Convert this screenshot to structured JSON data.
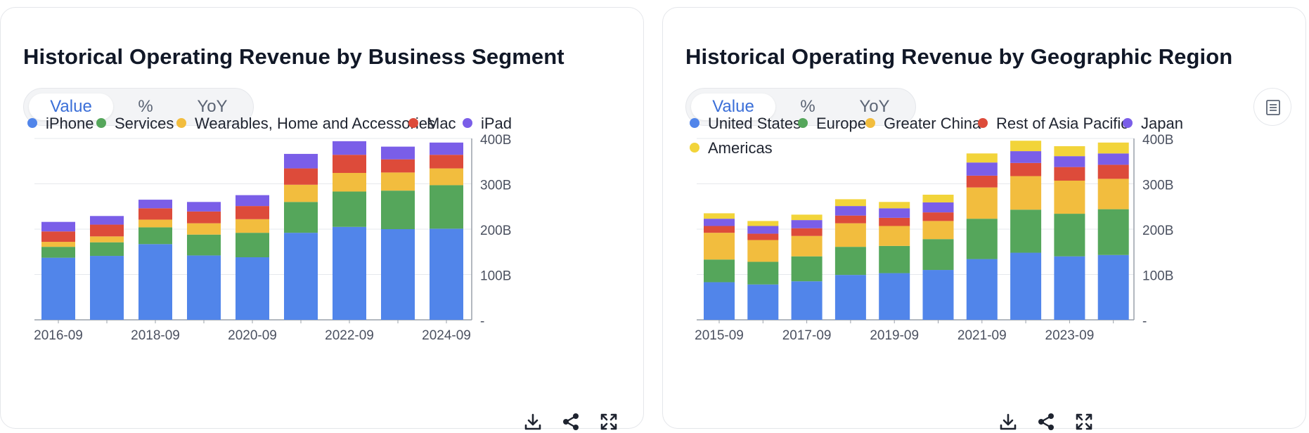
{
  "colors": {
    "blue": "#5185ea",
    "green": "#55a65b",
    "orange": "#f2bd3e",
    "red": "#dd4b3a",
    "purple": "#7a5ee8",
    "yellow": "#f2d43a",
    "active_toggle": "#3b6fd8"
  },
  "left_card": {
    "title": "Historical Operating Revenue by Business Segment",
    "toggle": [
      "Value",
      "%",
      "YoY"
    ],
    "toggle_active": "Value"
  },
  "right_card": {
    "title": "Historical Operating Revenue by Geographic Region",
    "toggle": [
      "Value",
      "%",
      "YoY"
    ],
    "toggle_active": "Value"
  },
  "toolbar_icons": [
    "download-icon",
    "share-icon",
    "fullscreen-icon"
  ],
  "chart_data": [
    {
      "type": "bar",
      "stacked": true,
      "title": "Historical Operating Revenue by Business Segment",
      "categories": [
        "2016-09",
        "2017-09",
        "2018-09",
        "2019-09",
        "2020-09",
        "2021-09",
        "2022-09",
        "2023-09",
        "2024-09"
      ],
      "x_tick_labels": [
        "2016-09",
        "2018-09",
        "2020-09",
        "2022-09",
        "2024-09"
      ],
      "y_tick_labels": [
        "-",
        "100B",
        "200B",
        "300B",
        "400B"
      ],
      "ylim": [
        0,
        400
      ],
      "y_unit": "B",
      "grid": true,
      "legend_position": "top",
      "series": [
        {
          "name": "iPhone",
          "color": "#5185ea",
          "values": [
            137,
            141,
            167,
            142,
            138,
            192,
            205,
            200,
            201
          ]
        },
        {
          "name": "Services",
          "color": "#55a65b",
          "values": [
            24,
            30,
            37,
            46,
            54,
            68,
            78,
            85,
            96
          ]
        },
        {
          "name": "Wearables, Home and Accessories",
          "color": "#f2bd3e",
          "values": [
            11,
            13,
            17,
            25,
            30,
            38,
            41,
            40,
            37
          ]
        },
        {
          "name": "Mac",
          "color": "#dd4b3a",
          "values": [
            23,
            26,
            25,
            26,
            29,
            36,
            40,
            29,
            30
          ]
        },
        {
          "name": "iPad",
          "color": "#7a5ee8",
          "values": [
            21,
            19,
            19,
            21,
            24,
            32,
            30,
            28,
            27
          ]
        }
      ]
    },
    {
      "type": "bar",
      "stacked": true,
      "title": "Historical Operating Revenue by Geographic Region",
      "categories": [
        "2015-09",
        "2016-09",
        "2017-09",
        "2018-09",
        "2019-09",
        "2020-09",
        "2021-09",
        "2022-09",
        "2023-09",
        "2024-09"
      ],
      "x_tick_labels": [
        "2015-09",
        "2017-09",
        "2019-09",
        "2021-09",
        "2023-09"
      ],
      "y_tick_labels": [
        "-",
        "100B",
        "200B",
        "300B",
        "400B"
      ],
      "ylim": [
        0,
        400
      ],
      "y_unit": "B",
      "grid": true,
      "legend_position": "top",
      "series": [
        {
          "name": "United States",
          "color": "#5185ea",
          "values": [
            83,
            78,
            85,
            99,
            103,
            110,
            134,
            148,
            140,
            143
          ]
        },
        {
          "name": "Europe",
          "color": "#55a65b",
          "values": [
            50,
            50,
            55,
            62,
            60,
            68,
            89,
            95,
            94,
            101
          ]
        },
        {
          "name": "Greater China",
          "color": "#f2bd3e",
          "values": [
            59,
            48,
            45,
            52,
            44,
            40,
            69,
            74,
            73,
            67
          ]
        },
        {
          "name": "Rest of Asia Pacific",
          "color": "#dd4b3a",
          "values": [
            15,
            14,
            17,
            17,
            18,
            19,
            26,
            29,
            30,
            31
          ]
        },
        {
          "name": "Japan",
          "color": "#7a5ee8",
          "values": [
            16,
            17,
            18,
            21,
            21,
            22,
            29,
            26,
            24,
            25
          ]
        },
        {
          "name": "Americas",
          "color": "#f2d43a",
          "values": [
            12,
            11,
            12,
            15,
            14,
            17,
            20,
            23,
            22,
            24
          ]
        }
      ]
    }
  ]
}
